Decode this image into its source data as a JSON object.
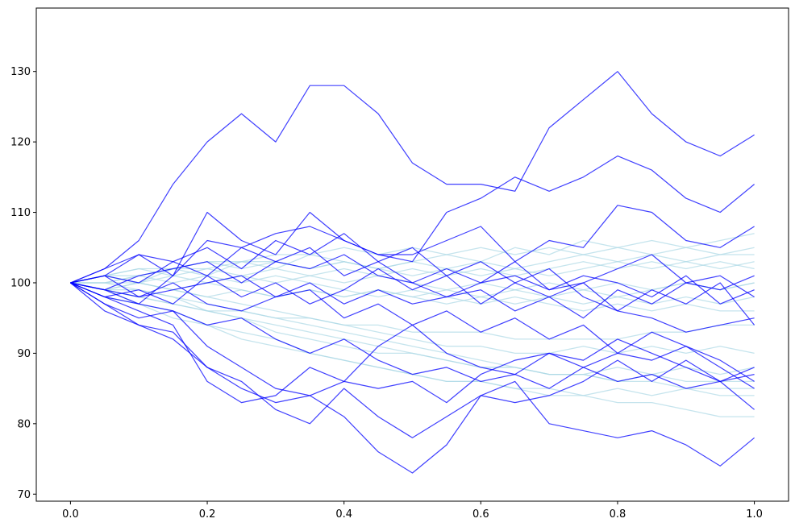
{
  "chart_data": {
    "type": "line",
    "title": "",
    "xlabel": "",
    "ylabel": "",
    "xlim": [
      -0.05,
      1.05
    ],
    "ylim": [
      69,
      139
    ],
    "xticks": [
      0.0,
      0.2,
      0.4,
      0.6,
      0.8,
      1.0
    ],
    "xtick_labels": [
      "0.0",
      "0.2",
      "0.4",
      "0.6",
      "0.8",
      "1.0"
    ],
    "yticks": [
      70,
      80,
      90,
      100,
      110,
      120,
      130
    ],
    "ytick_labels": [
      "70",
      "80",
      "90",
      "100",
      "110",
      "120",
      "130"
    ],
    "grid": false,
    "legend": "none",
    "colors": {
      "light": "#add8e6",
      "dark": "#0000ff"
    },
    "x": [
      0.0,
      0.05,
      0.1,
      0.15,
      0.2,
      0.25,
      0.3,
      0.35,
      0.4,
      0.45,
      0.5,
      0.55,
      0.6,
      0.65,
      0.7,
      0.75,
      0.8,
      0.85,
      0.9,
      0.95,
      1.0
    ],
    "series": [
      {
        "group": "light",
        "values": [
          100,
          101,
          100,
          102,
          101,
          103,
          102,
          104,
          103,
          102,
          103,
          104,
          103,
          105,
          104,
          106,
          105,
          106,
          105,
          106,
          107
        ]
      },
      {
        "group": "light",
        "values": [
          100,
          99,
          100,
          99,
          100,
          99,
          98,
          99,
          98,
          99,
          98,
          97,
          98,
          97,
          98,
          97,
          98,
          97,
          98,
          97,
          98
        ]
      },
      {
        "group": "light",
        "values": [
          100,
          100,
          99,
          98,
          96,
          95,
          93,
          92,
          91,
          90,
          90,
          89,
          88,
          88,
          87,
          87,
          86,
          86,
          85,
          85,
          85
        ]
      },
      {
        "group": "light",
        "values": [
          100,
          98,
          97,
          95,
          94,
          92,
          91,
          90,
          89,
          88,
          87,
          86,
          86,
          85,
          84,
          84,
          83,
          83,
          82,
          81,
          81
        ]
      },
      {
        "group": "light",
        "values": [
          100,
          101,
          102,
          101,
          102,
          101,
          102,
          101,
          102,
          101,
          102,
          101,
          102,
          101,
          102,
          103,
          102,
          103,
          102,
          103,
          102
        ]
      },
      {
        "group": "light",
        "values": [
          100,
          99,
          98,
          97,
          96,
          95,
          94,
          93,
          92,
          91,
          90,
          89,
          88,
          88,
          87,
          87,
          88,
          87,
          88,
          87,
          88
        ]
      },
      {
        "group": "light",
        "values": [
          100,
          100,
          101,
          102,
          103,
          103,
          104,
          104,
          105,
          104,
          105,
          104,
          105,
          104,
          105,
          104,
          105,
          104,
          105,
          104,
          105
        ]
      },
      {
        "group": "light",
        "values": [
          100,
          99,
          100,
          99,
          98,
          99,
          98,
          99,
          98,
          99,
          98,
          99,
          98,
          99,
          98,
          99,
          98,
          99,
          100,
          99,
          100
        ]
      },
      {
        "group": "light",
        "values": [
          100,
          101,
          100,
          99,
          98,
          97,
          96,
          95,
          94,
          93,
          92,
          91,
          91,
          90,
          90,
          91,
          90,
          91,
          90,
          91,
          90
        ]
      },
      {
        "group": "light",
        "values": [
          100,
          100,
          100,
          101,
          100,
          101,
          100,
          101,
          100,
          101,
          100,
          99,
          100,
          99,
          100,
          99,
          100,
          99,
          100,
          99,
          100
        ]
      },
      {
        "group": "light",
        "values": [
          100,
          99,
          98,
          97,
          96,
          96,
          95,
          95,
          94,
          94,
          93,
          93,
          93,
          92,
          92,
          92,
          92,
          93,
          93,
          94,
          94
        ]
      },
      {
        "group": "light",
        "values": [
          100,
          101,
          102,
          102,
          103,
          102,
          103,
          102,
          103,
          102,
          101,
          102,
          101,
          102,
          101,
          102,
          103,
          102,
          103,
          102,
          103
        ]
      },
      {
        "group": "light",
        "values": [
          100,
          99,
          97,
          96,
          94,
          93,
          92,
          90,
          89,
          88,
          87,
          86,
          86,
          85,
          85,
          84,
          85,
          84,
          85,
          84,
          84
        ]
      },
      {
        "group": "light",
        "values": [
          100,
          100,
          101,
          100,
          101,
          100,
          101,
          100,
          99,
          98,
          99,
          98,
          97,
          98,
          97,
          96,
          97,
          96,
          97,
          96,
          96
        ]
      },
      {
        "group": "light",
        "values": [
          100,
          101,
          101,
          102,
          102,
          103,
          103,
          102,
          103,
          102,
          103,
          102,
          103,
          102,
          103,
          104,
          103,
          104,
          103,
          104,
          104
        ]
      },
      {
        "group": "light",
        "values": [
          100,
          99,
          99,
          98,
          97,
          96,
          95,
          94,
          93,
          92,
          91,
          90,
          89,
          88,
          87,
          87,
          86,
          87,
          86,
          86,
          86
        ]
      },
      {
        "group": "dark",
        "values": [
          100,
          102,
          106,
          114,
          120,
          124,
          120,
          128,
          128,
          124,
          117,
          114,
          114,
          113,
          122,
          126,
          130,
          124,
          120,
          118,
          121
        ]
      },
      {
        "group": "dark",
        "values": [
          100,
          98,
          97,
          101,
          110,
          106,
          104,
          110,
          106,
          104,
          103,
          110,
          112,
          115,
          113,
          115,
          118,
          116,
          112,
          110,
          114
        ]
      },
      {
        "group": "dark",
        "values": [
          100,
          101,
          104,
          101,
          106,
          105,
          107,
          108,
          106,
          104,
          104,
          106,
          108,
          103,
          106,
          105,
          111,
          110,
          106,
          105,
          108
        ]
      },
      {
        "group": "dark",
        "values": [
          100,
          99,
          97,
          96,
          91,
          88,
          85,
          84,
          81,
          76,
          73,
          77,
          84,
          86,
          80,
          79,
          78,
          79,
          77,
          74,
          78
        ]
      },
      {
        "group": "dark",
        "values": [
          100,
          97,
          94,
          93,
          88,
          86,
          82,
          80,
          85,
          81,
          78,
          81,
          84,
          83,
          84,
          86,
          89,
          86,
          89,
          86,
          82
        ]
      },
      {
        "group": "dark",
        "values": [
          100,
          98,
          96,
          94,
          86,
          83,
          84,
          88,
          86,
          91,
          94,
          90,
          88,
          87,
          90,
          89,
          92,
          90,
          88,
          86,
          87
        ]
      },
      {
        "group": "dark",
        "values": [
          100,
          96,
          94,
          92,
          88,
          85,
          83,
          84,
          86,
          85,
          86,
          83,
          87,
          89,
          90,
          88,
          90,
          89,
          91,
          88,
          85
        ]
      },
      {
        "group": "dark",
        "values": [
          100,
          99,
          101,
          102,
          103,
          100,
          103,
          105,
          101,
          103,
          100,
          98,
          100,
          101,
          99,
          100,
          102,
          104,
          100,
          99,
          101
        ]
      },
      {
        "group": "dark",
        "values": [
          100,
          101,
          100,
          103,
          101,
          105,
          103,
          102,
          104,
          101,
          100,
          102,
          100,
          103,
          99,
          101,
          100,
          98,
          101,
          97,
          99
        ]
      },
      {
        "group": "dark",
        "values": [
          100,
          98,
          99,
          97,
          101,
          98,
          100,
          97,
          99,
          102,
          99,
          101,
          97,
          100,
          98,
          100,
          96,
          99,
          97,
          100,
          94
        ]
      },
      {
        "group": "dark",
        "values": [
          100,
          101,
          98,
          100,
          97,
          96,
          98,
          99,
          95,
          97,
          94,
          96,
          93,
          95,
          92,
          94,
          90,
          93,
          91,
          89,
          86
        ]
      },
      {
        "group": "dark",
        "values": [
          100,
          99,
          98,
          99,
          100,
          101,
          98,
          100,
          97,
          99,
          97,
          98,
          99,
          96,
          98,
          95,
          99,
          97,
          100,
          101,
          98
        ]
      },
      {
        "group": "dark",
        "values": [
          100,
          102,
          104,
          103,
          105,
          102,
          106,
          104,
          107,
          103,
          105,
          101,
          103,
          100,
          102,
          98,
          96,
          95,
          93,
          94,
          95
        ]
      },
      {
        "group": "dark",
        "values": [
          100,
          97,
          95,
          96,
          94,
          95,
          92,
          90,
          92,
          89,
          87,
          88,
          86,
          87,
          85,
          88,
          86,
          87,
          85,
          86,
          88
        ]
      }
    ]
  }
}
